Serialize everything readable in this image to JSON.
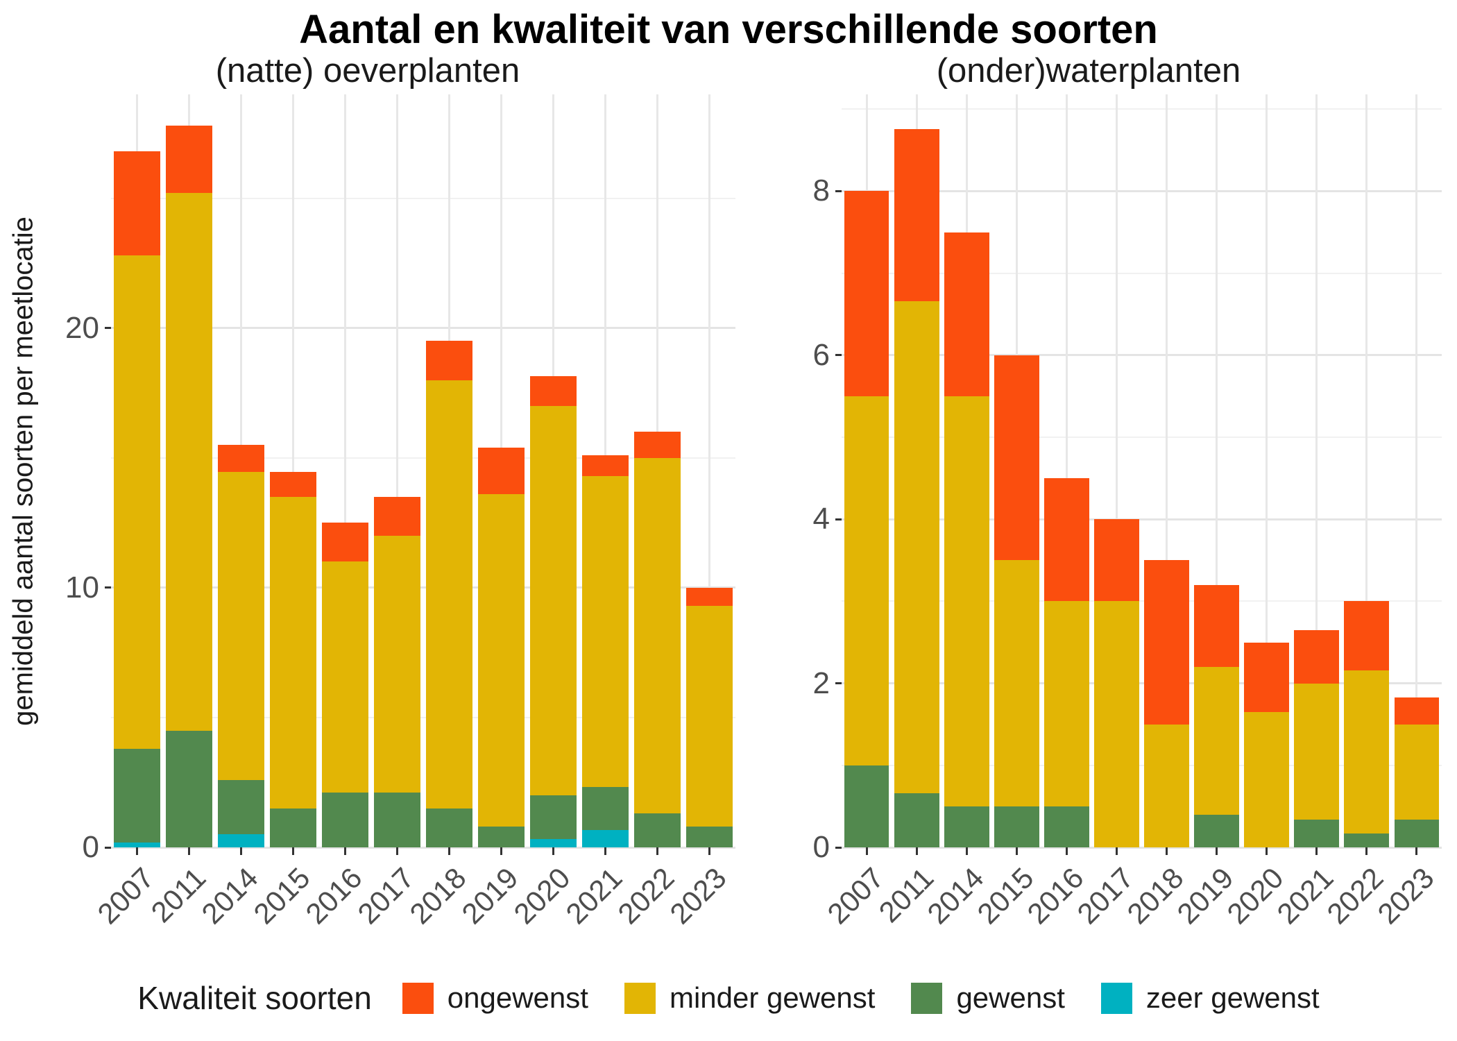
{
  "title": "Aantal en kwaliteit van verschillende soorten",
  "legend": {
    "title": "Kwaliteit soorten",
    "items": [
      {
        "label": "ongewenst",
        "color": "#FB4E0E"
      },
      {
        "label": "minder gewenst",
        "color": "#E2B505"
      },
      {
        "label": "gewenst",
        "color": "#52894E"
      },
      {
        "label": "zeer gewenst",
        "color": "#00B1C1"
      }
    ]
  },
  "colors": {
    "grid_major": "#E4E4E4",
    "grid_minor": "#F1F1F1",
    "tick_mark": "#333333",
    "tick_text": "#4D4D4D"
  },
  "chart_data": [
    {
      "type": "bar",
      "stacked": true,
      "title": "(natte) oeverplanten",
      "ylabel": "gemiddeld aantal soorten per meetlocatie",
      "xlabel": "",
      "categories": [
        "2007",
        "2011",
        "2014",
        "2015",
        "2016",
        "2017",
        "2018",
        "2019",
        "2020",
        "2021",
        "2022",
        "2023"
      ],
      "series": [
        {
          "name": "zeer gewenst",
          "color": "#00B1C1",
          "values": [
            0.2,
            0,
            0.5,
            0,
            0,
            0,
            0,
            0,
            0.33,
            0.66,
            0,
            0
          ]
        },
        {
          "name": "gewenst",
          "color": "#52894E",
          "values": [
            3.6,
            4.5,
            2.1,
            1.5,
            2.1,
            2.1,
            1.5,
            0.8,
            1.67,
            1.66,
            1.32,
            0.8
          ]
        },
        {
          "name": "minder gewenst",
          "color": "#E2B505",
          "values": [
            19.0,
            20.7,
            11.85,
            12.0,
            8.9,
            9.9,
            16.5,
            12.8,
            15.0,
            11.98,
            13.68,
            8.5
          ]
        },
        {
          "name": "ongewenst",
          "color": "#FB4E0E",
          "values": [
            4.0,
            2.6,
            1.05,
            0.95,
            1.5,
            1.5,
            1.5,
            1.8,
            1.15,
            0.8,
            1.0,
            0.7
          ]
        }
      ],
      "totals": [
        26.8,
        27.8,
        15.5,
        14.45,
        12.5,
        13.5,
        19.5,
        15.4,
        18.15,
        15.1,
        16.0,
        10.0
      ],
      "ylim": [
        0,
        29.0
      ],
      "yticks": [
        0,
        10,
        20
      ],
      "yminor": [
        5,
        15,
        25
      ],
      "grid": true,
      "legend_position": "bottom"
    },
    {
      "type": "bar",
      "stacked": true,
      "title": "(onder)waterplanten",
      "ylabel": "",
      "xlabel": "",
      "categories": [
        "2007",
        "2011",
        "2014",
        "2015",
        "2016",
        "2017",
        "2018",
        "2019",
        "2020",
        "2021",
        "2022",
        "2023"
      ],
      "series": [
        {
          "name": "zeer gewenst",
          "color": "#00B1C1",
          "values": [
            0,
            0,
            0,
            0,
            0,
            0,
            0,
            0,
            0,
            0,
            0,
            0
          ]
        },
        {
          "name": "gewenst",
          "color": "#52894E",
          "values": [
            1.0,
            0.66,
            0.5,
            0.5,
            0.5,
            0,
            0,
            0.4,
            0,
            0.34,
            0.17,
            0.34
          ]
        },
        {
          "name": "minder gewenst",
          "color": "#E2B505",
          "values": [
            4.5,
            6.0,
            5.0,
            3.0,
            2.5,
            3.0,
            1.5,
            1.8,
            1.65,
            1.66,
            1.99,
            1.16
          ]
        },
        {
          "name": "ongewenst",
          "color": "#FB4E0E",
          "values": [
            2.5,
            2.1,
            2.0,
            2.5,
            1.5,
            1.0,
            2.0,
            1.0,
            0.85,
            0.65,
            0.84,
            0.33
          ]
        }
      ],
      "totals": [
        8.0,
        8.76,
        7.5,
        6.0,
        4.5,
        4.0,
        3.5,
        3.2,
        2.5,
        2.65,
        3.0,
        1.83
      ],
      "ylim": [
        0,
        9.18
      ],
      "yticks": [
        0,
        2,
        4,
        6,
        8
      ],
      "yminor": [
        1,
        3,
        5,
        7,
        9
      ],
      "grid": true,
      "legend_position": "bottom"
    }
  ]
}
